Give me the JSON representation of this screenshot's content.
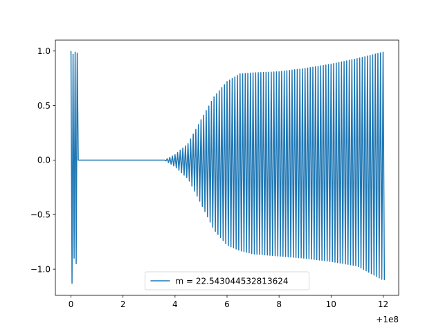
{
  "chart_data": {
    "type": "line",
    "title": "",
    "xlabel": "",
    "ylabel": "",
    "x_offset_label": "+1e8",
    "xlim": [
      -0.6,
      12.6
    ],
    "ylim": [
      -1.24,
      1.1
    ],
    "x_ticks": [
      {
        "value": 0,
        "label": "0"
      },
      {
        "value": 2,
        "label": "2"
      },
      {
        "value": 4,
        "label": "4"
      },
      {
        "value": 6,
        "label": "6"
      },
      {
        "value": 8,
        "label": "8"
      },
      {
        "value": 10,
        "label": "10"
      },
      {
        "value": 12,
        "label": "12"
      }
    ],
    "y_ticks": [
      {
        "value": 1.0,
        "label": "1.0"
      },
      {
        "value": 0.5,
        "label": "0.5"
      },
      {
        "value": 0.0,
        "label": "0.0"
      },
      {
        "value": -0.5,
        "label": "−0.5"
      },
      {
        "value": -1.0,
        "label": "−1.0"
      }
    ],
    "grid": false,
    "legend": {
      "placement": "lower-center",
      "entries": [
        "m = 22.543044532813624"
      ]
    },
    "series": [
      {
        "name": "m = 22.543044532813624",
        "color": "#1f77b4",
        "description": "oscillating signal",
        "points": [
          [
            0.0,
            1.0
          ],
          [
            0.04,
            -1.13
          ],
          [
            0.08,
            0.97
          ],
          [
            0.12,
            -0.9
          ],
          [
            0.16,
            0.99
          ],
          [
            0.2,
            -0.95
          ],
          [
            0.24,
            0.98
          ],
          [
            0.28,
            0.0
          ],
          [
            3.6,
            0.0
          ]
        ],
        "envelope": [
          [
            3.6,
            0.0,
            0.0
          ],
          [
            4.0,
            0.05,
            -0.06
          ],
          [
            4.5,
            0.15,
            -0.17
          ],
          [
            5.0,
            0.37,
            -0.4
          ],
          [
            5.5,
            0.58,
            -0.64
          ],
          [
            6.0,
            0.72,
            -0.78
          ],
          [
            6.5,
            0.79,
            -0.83
          ],
          [
            7.0,
            0.8,
            -0.86
          ],
          [
            8.0,
            0.81,
            -0.88
          ],
          [
            9.0,
            0.84,
            -0.9
          ],
          [
            10.0,
            0.88,
            -0.93
          ],
          [
            11.0,
            0.93,
            -0.97
          ],
          [
            12.0,
            0.99,
            -1.1
          ]
        ],
        "oscillation_period": 0.1
      }
    ]
  }
}
